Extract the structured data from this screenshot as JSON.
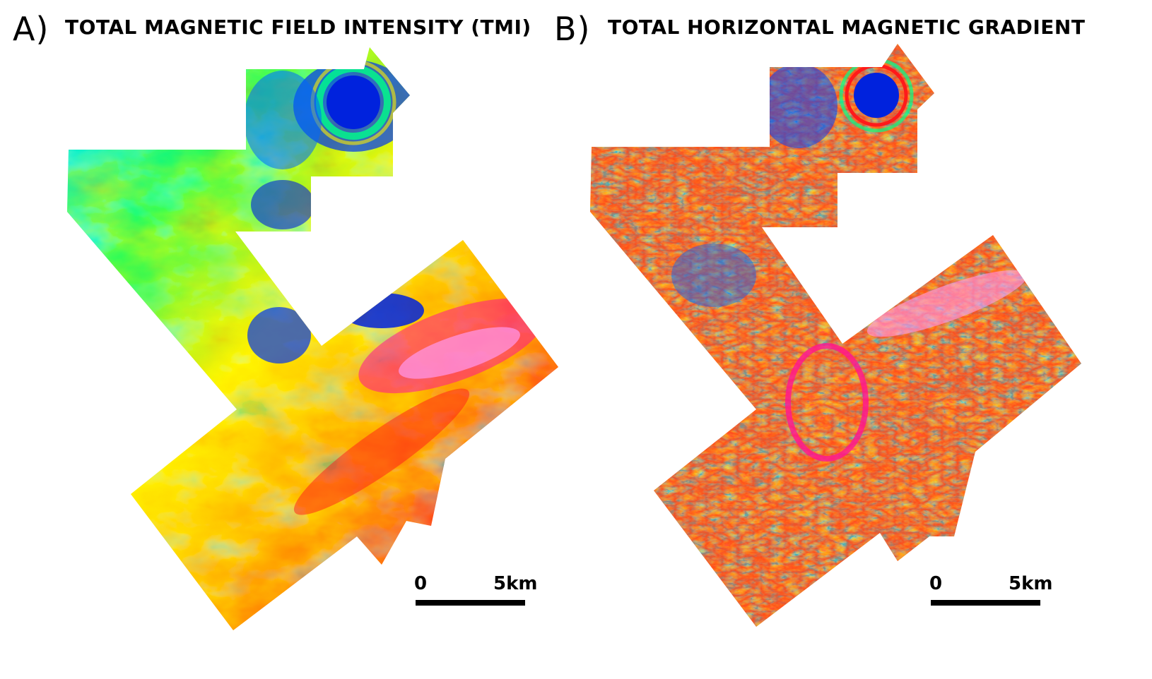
{
  "panels": [
    {
      "letter": "A)",
      "title": "TOTAL MAGNETIC FIELD INTENSITY (TMI)",
      "scale": {
        "start_label": "0",
        "end_label": "5km"
      }
    },
    {
      "letter": "B)",
      "title": "TOTAL HORIZONTAL MAGNETIC GRADIENT",
      "scale": {
        "start_label": "0",
        "end_label": "5km"
      }
    }
  ],
  "colors": {
    "palette": [
      "#0022dd",
      "#0077ff",
      "#00e5ff",
      "#00ff88",
      "#7fff00",
      "#ffee00",
      "#ff8800",
      "#ff1a1a",
      "#ff1493",
      "#ff88ee"
    ],
    "background": "#ffffff",
    "text": "#000000"
  }
}
